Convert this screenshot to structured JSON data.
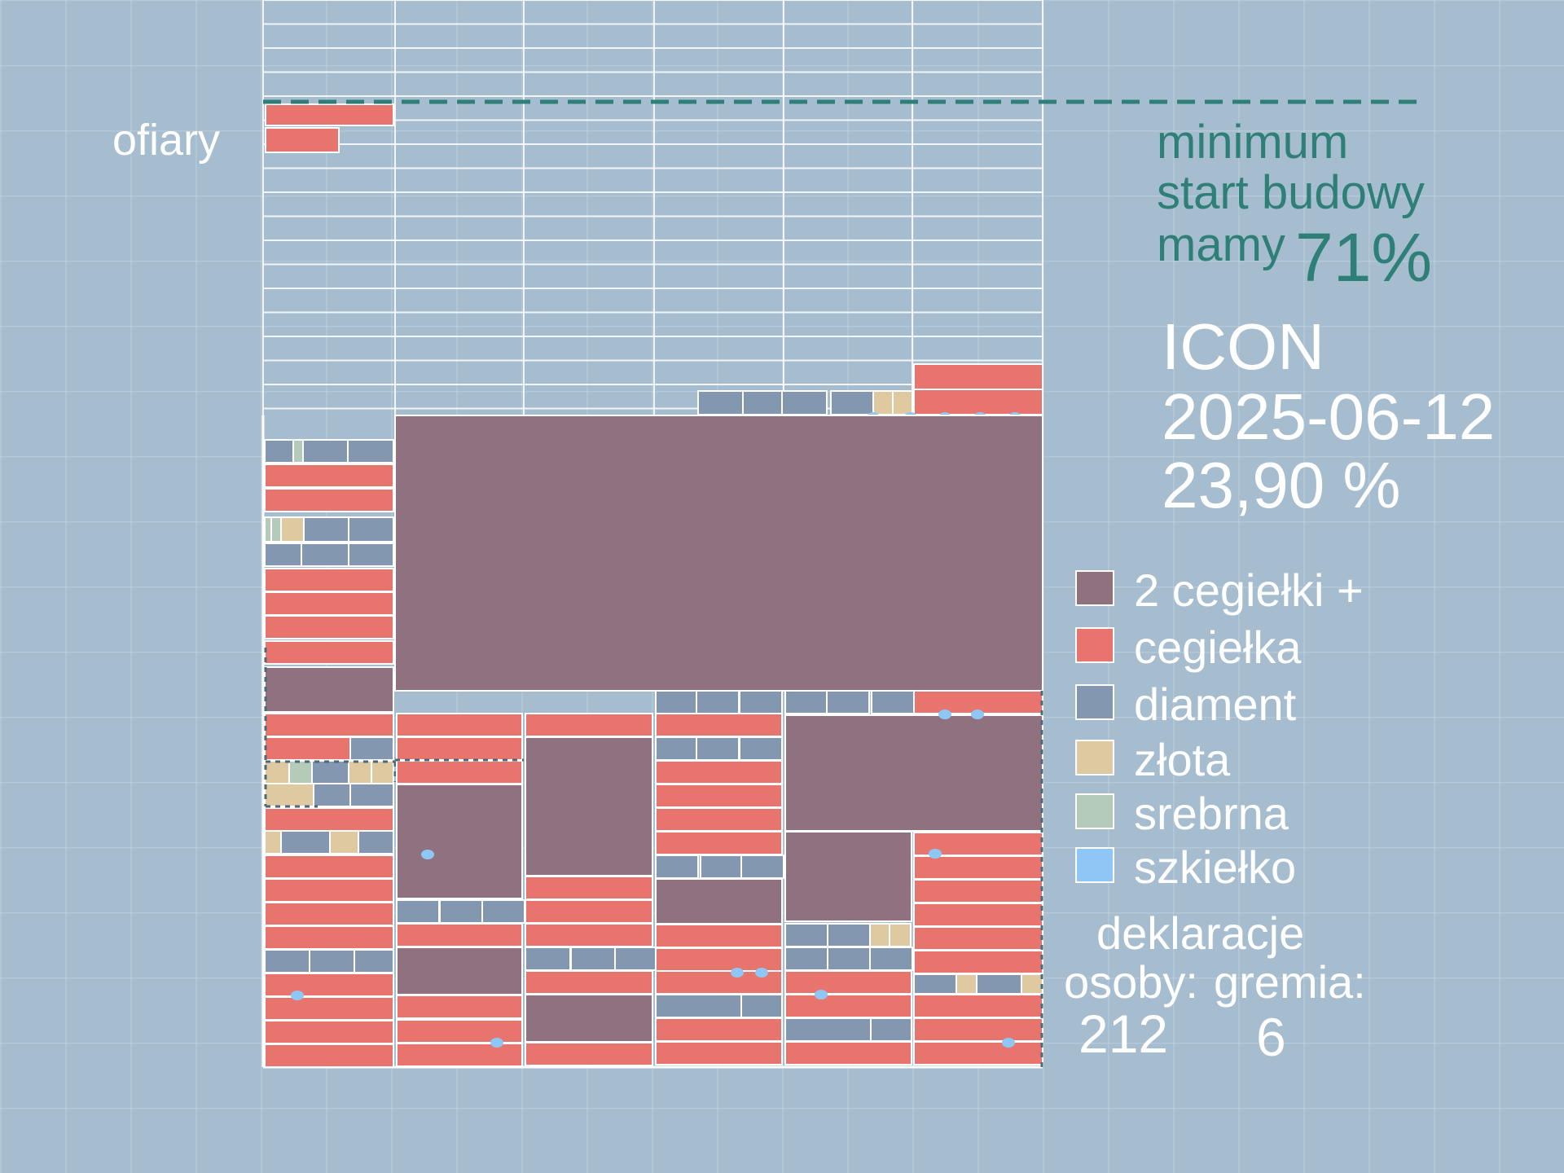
{
  "labels": {
    "ofiary": "ofiary",
    "minimum": "minimum",
    "start_budowy": "start budowy",
    "mamy": "mamy",
    "mamy_percent": "71%",
    "project": "ICON",
    "date": "2025-06-12",
    "percent": "23,90 %"
  },
  "legend": [
    {
      "label": "2 cegiełki +",
      "color": "#90717f"
    },
    {
      "label": "cegiełka",
      "color": "#e7756e"
    },
    {
      "label": "diament",
      "color": "#8397b0"
    },
    {
      "label": "złota",
      "color": "#dfc9a0"
    },
    {
      "label": "srebrna",
      "color": "#b3cbb8"
    },
    {
      "label": "szkiełko",
      "color": "#8ec7f5"
    }
  ],
  "declarations": {
    "title": "deklaracje",
    "persons_label": "osoby:",
    "persons_value": "212",
    "groups_label": "gremia:",
    "groups_value": "6"
  }
}
